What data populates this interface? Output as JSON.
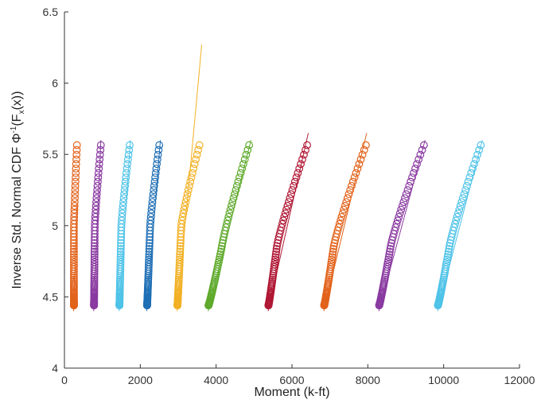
{
  "chart_data": {
    "type": "scatter",
    "title": "",
    "xlabel": "Moment (k-ft)",
    "ylabel_main": "Inverse Std. Normal CDF Φ",
    "ylabel_sup": "-1",
    "ylabel_paren": "(F",
    "ylabel_sub": "x",
    "ylabel_tail": "(x))",
    "xlim": [
      0,
      12000
    ],
    "ylim": [
      4,
      6.5
    ],
    "xticks": [
      0,
      2000,
      4000,
      6000,
      8000,
      10000,
      12000
    ],
    "yticks": [
      4,
      4.5,
      5,
      5.5,
      6,
      6.5
    ],
    "xtick_labels": [
      "0",
      "2000",
      "4000",
      "6000",
      "8000",
      "10000",
      "12000"
    ],
    "ytick_labels": [
      "4",
      "4.5",
      "5",
      "5.5",
      "6",
      "6.5"
    ],
    "grid": false,
    "series": [
      {
        "color": "#e2621b",
        "x_start": 250,
        "x_break": 250,
        "y_break": 5.0,
        "x_end": 330,
        "fit": [
          [
            240,
            4.4
          ],
          [
            330,
            5.15
          ]
        ]
      },
      {
        "color": "#8a3aa0",
        "x_start": 780,
        "x_break": 800,
        "y_break": 5.0,
        "x_end": 960,
        "fit": [
          [
            770,
            4.4
          ],
          [
            960,
            5.6
          ]
        ]
      },
      {
        "color": "#4fc3e8",
        "x_start": 1450,
        "x_break": 1500,
        "y_break": 5.0,
        "x_end": 1720,
        "fit": [
          [
            1440,
            4.4
          ],
          [
            1740,
            5.6
          ]
        ]
      },
      {
        "color": "#1f6fb5",
        "x_start": 2180,
        "x_break": 2260,
        "y_break": 5.0,
        "x_end": 2500,
        "fit": [
          [
            2170,
            4.4
          ],
          [
            2530,
            5.6
          ]
        ]
      },
      {
        "color": "#f2b125",
        "x_start": 2980,
        "x_break": 3080,
        "y_break": 5.0,
        "x_end": 3560,
        "fit": [
          [
            2970,
            4.4
          ],
          [
            3620,
            6.27
          ]
        ]
      },
      {
        "color": "#5faa2c",
        "x_start": 3800,
        "x_break": 4150,
        "y_break": 4.85,
        "x_end": 4870,
        "fit": [
          [
            3790,
            4.4
          ],
          [
            4920,
            5.6
          ]
        ]
      },
      {
        "color": "#b01835",
        "x_start": 5380,
        "x_break": 5600,
        "y_break": 4.85,
        "x_end": 6400,
        "fit": [
          [
            5370,
            4.4
          ],
          [
            6430,
            5.65
          ]
        ]
      },
      {
        "color": "#e2621b",
        "x_start": 6850,
        "x_break": 7100,
        "y_break": 4.85,
        "x_end": 7950,
        "fit": [
          [
            6840,
            4.4
          ],
          [
            7970,
            5.65
          ]
        ]
      },
      {
        "color": "#8a3aa0",
        "x_start": 8300,
        "x_break": 8600,
        "y_break": 4.85,
        "x_end": 9480,
        "fit": [
          [
            8290,
            4.4
          ],
          [
            9510,
            5.6
          ]
        ]
      },
      {
        "color": "#4fc3e8",
        "x_start": 9850,
        "x_break": 10150,
        "y_break": 4.85,
        "x_end": 10980,
        "fit": [
          [
            9840,
            4.4
          ],
          [
            11020,
            5.6
          ]
        ]
      }
    ]
  }
}
